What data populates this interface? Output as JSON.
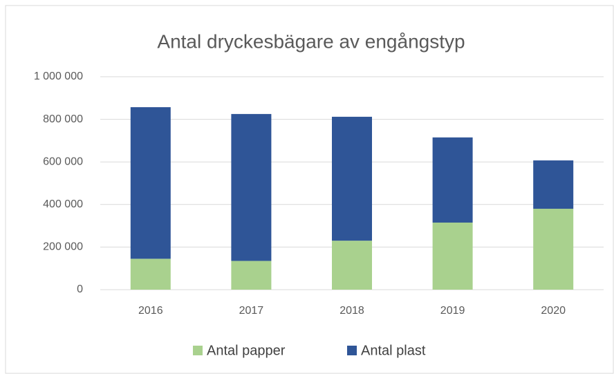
{
  "chart_data": {
    "type": "stacked_bar",
    "title": "Antal dryckesbägare av engångstyp",
    "categories": [
      "2016",
      "2017",
      "2018",
      "2019",
      "2020"
    ],
    "series": [
      {
        "name": "Antal papper",
        "color": "#a9d18e",
        "values": [
          145000,
          135000,
          230000,
          315000,
          380000
        ]
      },
      {
        "name": "Antal plast",
        "color": "#2f5597",
        "values": [
          712000,
          690000,
          582000,
          400000,
          227000
        ]
      }
    ],
    "ylim": [
      0,
      1000000
    ],
    "yticks": [
      0,
      {
        "value": 200000,
        "label": "200 000"
      },
      {
        "value": 400000,
        "label": "400 000"
      },
      {
        "value": 600000,
        "label": "600 000"
      },
      {
        "value": 800000,
        "label": "800 000"
      },
      {
        "value": 1000000,
        "label": "1 000 000"
      }
    ],
    "grid": true,
    "legend": "bottom"
  }
}
